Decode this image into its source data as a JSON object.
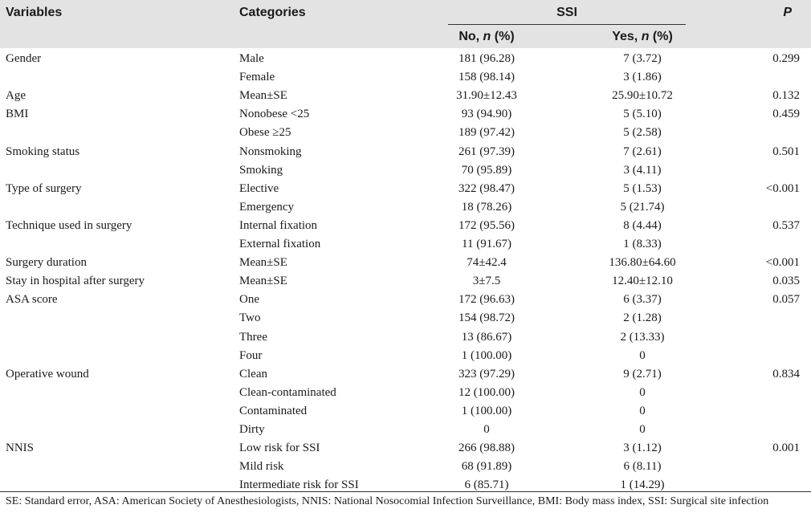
{
  "header": {
    "variables": "Variables",
    "categories": "Categories",
    "group": "SSI",
    "no_label": "No, ",
    "yes_label": "Yes, ",
    "n_italic": "n",
    "pct_suffix": " (%)",
    "p": "P"
  },
  "rows": [
    {
      "variable": "Gender",
      "category": "Male",
      "no": "181 (96.28)",
      "yes": "7 (3.72)",
      "p": "0.299"
    },
    {
      "variable": "",
      "category": "Female",
      "no": "158 (98.14)",
      "yes": "3 (1.86)",
      "p": ""
    },
    {
      "variable": "Age",
      "category": "Mean±SE",
      "no": "31.90±12.43",
      "yes": "25.90±10.72",
      "p": "0.132"
    },
    {
      "variable": "BMI",
      "category": "Nonobese <25",
      "no": "93 (94.90)",
      "yes": "5 (5.10)",
      "p": "0.459"
    },
    {
      "variable": "",
      "category": "Obese ≥25",
      "no": "189 (97.42)",
      "yes": "5 (2.58)",
      "p": ""
    },
    {
      "variable": "Smoking status",
      "category": "Nonsmoking",
      "no": "261 (97.39)",
      "yes": "7 (2.61)",
      "p": "0.501"
    },
    {
      "variable": "",
      "category": "Smoking",
      "no": "70 (95.89)",
      "yes": "3 (4.11)",
      "p": ""
    },
    {
      "variable": "Type of surgery",
      "category": "Elective",
      "no": "322 (98.47)",
      "yes": "5 (1.53)",
      "p": "<0.001"
    },
    {
      "variable": "",
      "category": "Emergency",
      "no": "18 (78.26)",
      "yes": "5 (21.74)",
      "p": ""
    },
    {
      "variable": "Technique used in surgery",
      "category": "Internal fixation",
      "no": "172 (95.56)",
      "yes": "8 (4.44)",
      "p": "0.537"
    },
    {
      "variable": "",
      "category": "External fixation",
      "no": "11 (91.67)",
      "yes": "1 (8.33)",
      "p": ""
    },
    {
      "variable": "Surgery duration",
      "category": "Mean±SE",
      "no": "74±42.4",
      "yes": "136.80±64.60",
      "p": "<0.001"
    },
    {
      "variable": "Stay in hospital after surgery",
      "category": "Mean±SE",
      "no": "3±7.5",
      "yes": "12.40±12.10",
      "p": "0.035"
    },
    {
      "variable": "ASA score",
      "category": "One",
      "no": "172 (96.63)",
      "yes": "6 (3.37)",
      "p": "0.057"
    },
    {
      "variable": "",
      "category": "Two",
      "no": "154 (98.72)",
      "yes": "2 (1.28)",
      "p": ""
    },
    {
      "variable": "",
      "category": "Three",
      "no": "13 (86.67)",
      "yes": "2 (13.33)",
      "p": ""
    },
    {
      "variable": "",
      "category": "Four",
      "no": "1 (100.00)",
      "yes": "0",
      "p": ""
    },
    {
      "variable": "Operative wound",
      "category": "Clean",
      "no": "323 (97.29)",
      "yes": "9 (2.71)",
      "p": "0.834"
    },
    {
      "variable": "",
      "category": "Clean-contaminated",
      "no": "12 (100.00)",
      "yes": "0",
      "p": ""
    },
    {
      "variable": "",
      "category": "Contaminated",
      "no": "1 (100.00)",
      "yes": "0",
      "p": ""
    },
    {
      "variable": "",
      "category": "Dirty",
      "no": "0",
      "yes": "0",
      "p": ""
    },
    {
      "variable": "NNIS",
      "category": "Low risk for SSI",
      "no": "266 (98.88)",
      "yes": "3 (1.12)",
      "p": "0.001"
    },
    {
      "variable": "",
      "category": "Mild risk",
      "no": "68 (91.89)",
      "yes": "6 (8.11)",
      "p": ""
    },
    {
      "variable": "",
      "category": "Intermediate risk for SSI",
      "no": "6 (85.71)",
      "yes": "1 (14.29)",
      "p": ""
    }
  ],
  "footnote": "SE: Standard error, ASA: American Society of Anesthesiologists, NNIS: National Nosocomial Infection Surveillance, BMI: Body mass index, SSI: Surgical site infection"
}
